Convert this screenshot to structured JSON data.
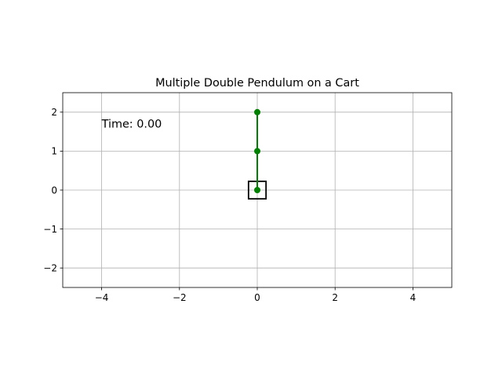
{
  "chart_data": {
    "type": "line",
    "title": "Multiple Double Pendulum on a Cart",
    "xlabel": "",
    "ylabel": "",
    "xlim": [
      -5,
      5
    ],
    "ylim": [
      -2.5,
      2.5
    ],
    "xticks": [
      -4,
      -2,
      0,
      2,
      4
    ],
    "yticks": [
      -2,
      -1,
      0,
      1,
      2
    ],
    "xtick_labels": [
      "−4",
      "−2",
      "0",
      "2",
      "4"
    ],
    "ytick_labels": [
      "−2",
      "−1",
      "0",
      "1",
      "2"
    ],
    "grid": true,
    "annotation": "Time: 0.00",
    "annotation_position": [
      -4,
      1.7
    ],
    "cart": {
      "x": 0,
      "y": 0,
      "width": 0.45,
      "height": 0.45
    },
    "series": [
      {
        "x": [
          0,
          0,
          0
        ],
        "y": [
          0,
          1,
          2
        ]
      }
    ],
    "colors": {
      "pendulum": "#008000",
      "cart": "#000000",
      "grid": "#b0b0b0",
      "axes": "#000000"
    }
  }
}
